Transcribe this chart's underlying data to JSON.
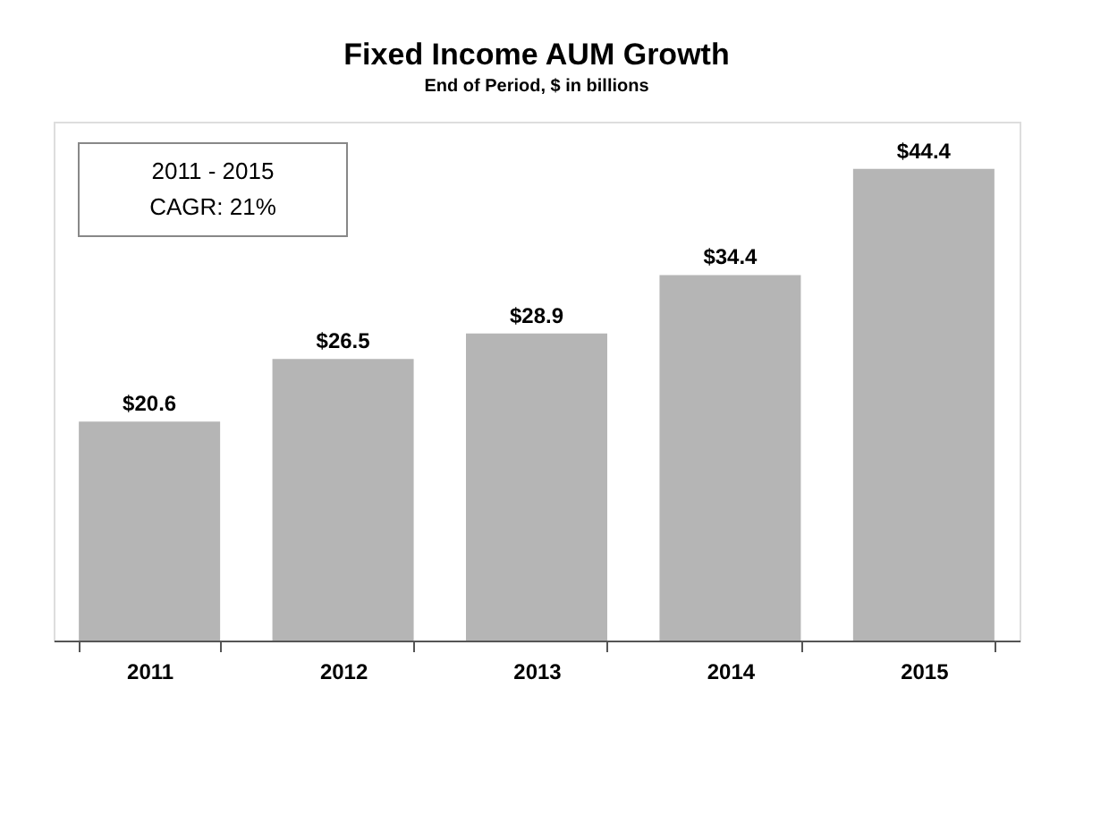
{
  "chart_data": {
    "type": "bar",
    "title": "Fixed Income AUM Growth",
    "subtitle": "End of Period, $ in billions",
    "categories": [
      "2011",
      "2012",
      "2013",
      "2014",
      "2015"
    ],
    "values": [
      20.6,
      26.5,
      28.9,
      34.4,
      44.4
    ],
    "value_labels": [
      "$20.6",
      "$26.5",
      "$28.9",
      "$34.4",
      "$44.4"
    ],
    "color": "#b5b5b5",
    "annotations": [
      "2011 - 2015",
      "CAGR: 21%"
    ],
    "grid": false
  }
}
